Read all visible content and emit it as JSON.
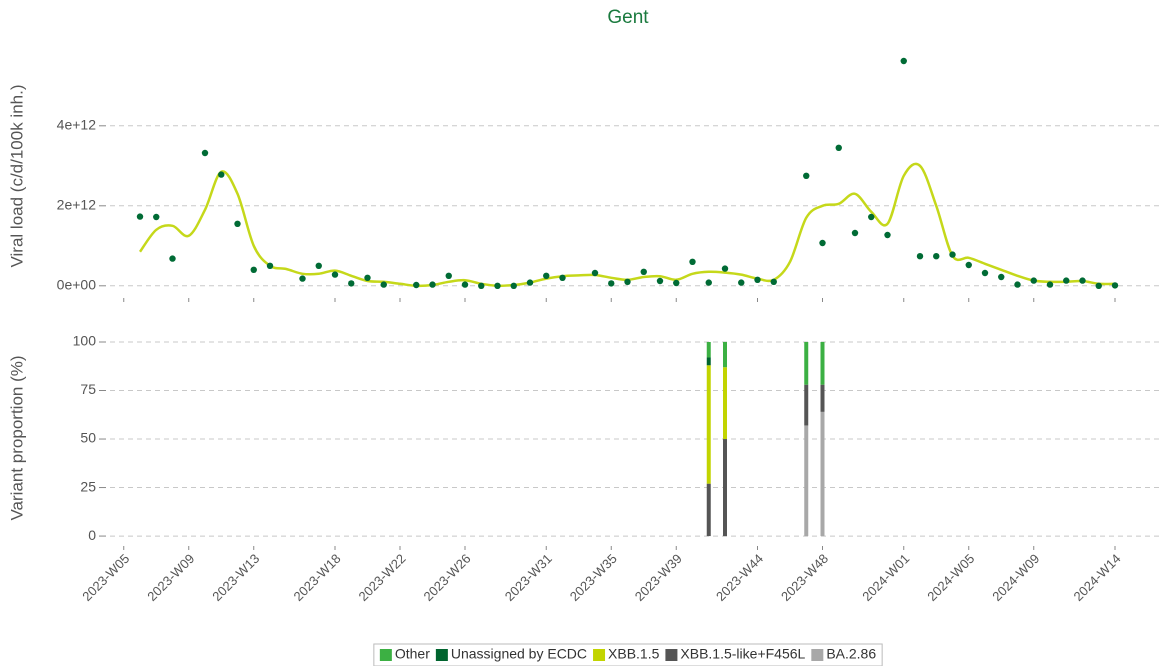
{
  "chart_data": [
    {
      "type": "scatter",
      "title": "Gent",
      "y_label": "Viral load (c/d/100k inh.)",
      "color": "#006b35",
      "grid": true,
      "ylim": [
        -280000000000.0,
        6270000000000.0
      ],
      "yticks": [
        {
          "value": 0,
          "label": "0e+00"
        },
        {
          "value": 2000000000000.0,
          "label": "2e+12"
        },
        {
          "value": 4000000000000.0,
          "label": "4e+12"
        }
      ],
      "values": [
        null,
        1730000000000.0,
        1720000000000.0,
        680000000000.0,
        null,
        3320000000000.0,
        2780000000000.0,
        1550000000000.0,
        400000000000.0,
        500000000000.0,
        null,
        180000000000.0,
        500000000000.0,
        280000000000.0,
        60000000000.0,
        200000000000.0,
        30000000000.0,
        null,
        20000000000.0,
        30000000000.0,
        250000000000.0,
        30000000000.0,
        0,
        0,
        0,
        80000000000.0,
        250000000000.0,
        200000000000.0,
        null,
        320000000000.0,
        60000000000.0,
        100000000000.0,
        350000000000.0,
        120000000000.0,
        70000000000.0,
        600000000000.0,
        80000000000.0,
        430000000000.0,
        80000000000.0,
        150000000000.0,
        100000000000.0,
        null,
        2750000000000.0,
        1070000000000.0,
        3450000000000.0,
        1320000000000.0,
        1720000000000.0,
        1270000000000.0,
        5620000000000.0,
        740000000000.0,
        740000000000.0,
        780000000000.0,
        520000000000.0,
        320000000000.0,
        220000000000.0,
        30000000000.0,
        130000000000.0,
        30000000000.0,
        130000000000.0,
        130000000000.0,
        0,
        10000000000.0
      ],
      "trend": {
        "color": "#c5d81a",
        "values": [
          null,
          850000000000.0,
          1400000000000.0,
          1500000000000.0,
          1250000000000.0,
          1900000000000.0,
          2850000000000.0,
          2300000000000.0,
          1000000000000.0,
          500000000000.0,
          420000000000.0,
          300000000000.0,
          300000000000.0,
          380000000000.0,
          250000000000.0,
          120000000000.0,
          100000000000.0,
          50000000000.0,
          0,
          20000000000.0,
          100000000000.0,
          140000000000.0,
          50000000000.0,
          0,
          20000000000.0,
          80000000000.0,
          180000000000.0,
          240000000000.0,
          260000000000.0,
          270000000000.0,
          200000000000.0,
          150000000000.0,
          220000000000.0,
          240000000000.0,
          150000000000.0,
          300000000000.0,
          350000000000.0,
          330000000000.0,
          280000000000.0,
          180000000000.0,
          150000000000.0,
          600000000000.0,
          1700000000000.0,
          2000000000000.0,
          2050000000000.0,
          2300000000000.0,
          1850000000000.0,
          1550000000000.0,
          2750000000000.0,
          3000000000000.0,
          2000000000000.0,
          750000000000.0,
          700000000000.0,
          550000000000.0,
          400000000000.0,
          250000000000.0,
          130000000000.0,
          100000000000.0,
          100000000000.0,
          120000000000.0,
          50000000000.0,
          50000000000.0
        ]
      }
    },
    {
      "type": "bar",
      "stacked": true,
      "y_label": "Variant proportion (%)",
      "grid": true,
      "ylim": [
        -4.6,
        103.6
      ],
      "yticks": [
        0,
        25,
        50,
        75,
        100
      ],
      "legend": "bottom",
      "categories": [
        "2023-W05",
        null,
        null,
        null,
        "2023-W09",
        null,
        null,
        null,
        "2023-W13",
        null,
        null,
        null,
        null,
        "2023-W18",
        null,
        null,
        null,
        "2023-W22",
        null,
        null,
        null,
        "2023-W26",
        null,
        null,
        null,
        null,
        "2023-W31",
        null,
        null,
        null,
        "2023-W35",
        null,
        null,
        null,
        "2023-W39",
        null,
        null,
        null,
        null,
        "2023-W44",
        null,
        null,
        null,
        "2023-W48",
        null,
        null,
        null,
        null,
        "2024-W01",
        null,
        null,
        null,
        "2024-W05",
        null,
        null,
        null,
        "2024-W09",
        null,
        null,
        null,
        null,
        "2024-W14"
      ],
      "series": [
        {
          "name": "Other",
          "color": "#3cb043",
          "values": [
            null,
            null,
            null,
            null,
            null,
            null,
            null,
            null,
            null,
            null,
            null,
            null,
            null,
            null,
            null,
            null,
            null,
            null,
            null,
            null,
            null,
            null,
            null,
            null,
            null,
            null,
            null,
            null,
            null,
            null,
            null,
            null,
            null,
            null,
            null,
            null,
            8,
            13,
            null,
            null,
            null,
            null,
            22,
            22,
            null,
            null,
            null,
            null,
            null,
            null,
            null,
            null,
            null,
            null,
            null,
            null,
            null,
            null,
            null,
            null,
            null,
            null
          ]
        },
        {
          "name": "Unassigned by ECDC",
          "color": "#00642e",
          "values": [
            null,
            null,
            null,
            null,
            null,
            null,
            null,
            null,
            null,
            null,
            null,
            null,
            null,
            null,
            null,
            null,
            null,
            null,
            null,
            null,
            null,
            null,
            null,
            null,
            null,
            null,
            null,
            null,
            null,
            null,
            null,
            null,
            null,
            null,
            null,
            null,
            4,
            0,
            null,
            null,
            null,
            null,
            0,
            0,
            null,
            null,
            null,
            null,
            null,
            null,
            null,
            null,
            null,
            null,
            null,
            null,
            null,
            null,
            null,
            null,
            null,
            null
          ]
        },
        {
          "name": "XBB.1.5",
          "color": "#c2d400",
          "values": [
            null,
            null,
            null,
            null,
            null,
            null,
            null,
            null,
            null,
            null,
            null,
            null,
            null,
            null,
            null,
            null,
            null,
            null,
            null,
            null,
            null,
            null,
            null,
            null,
            null,
            null,
            null,
            null,
            null,
            null,
            null,
            null,
            null,
            null,
            null,
            null,
            61,
            37,
            null,
            null,
            null,
            null,
            0,
            0,
            null,
            null,
            null,
            null,
            null,
            null,
            null,
            null,
            null,
            null,
            null,
            null,
            null,
            null,
            null,
            null,
            null,
            null
          ]
        },
        {
          "name": "XBB.1.5-like+F456L",
          "color": "#555555",
          "values": [
            null,
            null,
            null,
            null,
            null,
            null,
            null,
            null,
            null,
            null,
            null,
            null,
            null,
            null,
            null,
            null,
            null,
            null,
            null,
            null,
            null,
            null,
            null,
            null,
            null,
            null,
            null,
            null,
            null,
            null,
            null,
            null,
            null,
            null,
            null,
            null,
            27,
            50,
            null,
            null,
            null,
            null,
            21,
            14,
            null,
            null,
            null,
            null,
            null,
            null,
            null,
            null,
            null,
            null,
            null,
            null,
            null,
            null,
            null,
            null,
            null,
            null
          ]
        },
        {
          "name": "BA.2.86",
          "color": "#a8a8a8",
          "values": [
            null,
            null,
            null,
            null,
            null,
            null,
            null,
            null,
            null,
            null,
            null,
            null,
            null,
            null,
            null,
            null,
            null,
            null,
            null,
            null,
            null,
            null,
            null,
            null,
            null,
            null,
            null,
            null,
            null,
            null,
            null,
            null,
            null,
            null,
            null,
            null,
            0,
            0,
            null,
            null,
            null,
            null,
            57,
            64,
            null,
            null,
            null,
            null,
            null,
            null,
            null,
            null,
            null,
            null,
            null,
            null,
            null,
            null,
            null,
            null,
            null,
            null
          ]
        }
      ]
    }
  ]
}
